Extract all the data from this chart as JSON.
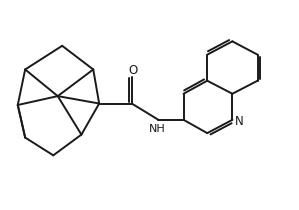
{
  "bg_color": "#ffffff",
  "line_color": "#1a1a1a",
  "line_width": 1.4,
  "text_color": "#1a1a1a",
  "o_label": "O",
  "nh_label": "NH",
  "n_label": "N",
  "o_fontsize": 8.5,
  "nh_fontsize": 8.0,
  "n_fontsize": 8.5
}
